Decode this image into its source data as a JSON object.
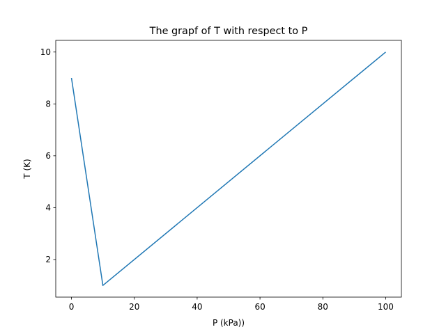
{
  "chart_data": {
    "type": "line",
    "title": "The grapf of T with respect to P",
    "xlabel": "P (kPa))",
    "ylabel": "T (K)",
    "xlim": [
      -5,
      105
    ],
    "ylim": [
      0.55,
      10.45
    ],
    "xticks": [
      0,
      20,
      40,
      60,
      80,
      100
    ],
    "yticks": [
      2,
      4,
      6,
      8,
      10
    ],
    "xtick_labels": [
      "0",
      "20",
      "40",
      "60",
      "80",
      "100"
    ],
    "ytick_labels": [
      "2",
      "4",
      "6",
      "8",
      "10"
    ],
    "grid": false,
    "series": [
      {
        "x": [
          0,
          10,
          100
        ],
        "y": [
          9,
          1,
          10
        ],
        "color": "#1f77b4"
      }
    ]
  }
}
